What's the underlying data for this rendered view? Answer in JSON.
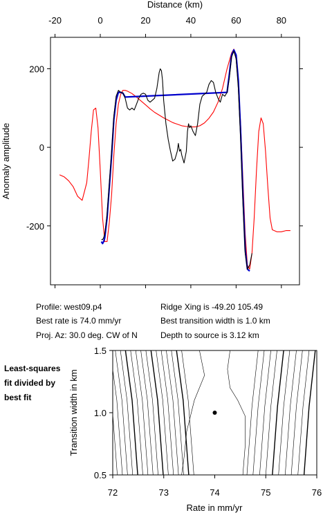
{
  "chart_data": [
    {
      "type": "line",
      "title": "",
      "xlabel": "Distance (km)",
      "ylabel": "Anomaly amplitude",
      "xlim": [
        -22,
        88
      ],
      "ylim": [
        -350,
        280
      ],
      "xticks": [
        -20,
        0,
        20,
        40,
        60,
        80
      ],
      "yticks": [
        -200,
        0,
        200
      ],
      "xtick_labels": [
        "-20",
        "0",
        "20",
        "40",
        "60",
        "80"
      ],
      "ytick_labels": [
        "-200",
        "0",
        "200"
      ],
      "xaxis_position": "top",
      "grid": false,
      "series": [
        {
          "color": "#ff0000",
          "style": "model",
          "x": [
            -18,
            -16,
            -14,
            -12,
            -10,
            -8,
            -6,
            -5,
            -4,
            -3,
            -2,
            -1,
            0,
            1,
            2,
            3,
            4,
            5,
            6,
            7,
            8,
            9,
            10,
            11,
            12,
            14,
            16,
            18,
            20,
            22,
            24,
            26,
            28,
            30,
            32,
            34,
            36,
            38,
            40,
            42,
            44,
            46,
            48,
            50,
            52,
            54,
            56,
            58,
            59,
            60,
            61,
            62,
            63,
            64,
            65,
            66,
            67,
            68,
            69,
            70,
            71,
            72,
            73,
            74,
            75,
            76,
            78,
            80,
            82,
            84
          ],
          "y": [
            -70,
            -75,
            -85,
            -100,
            -125,
            -135,
            -90,
            -30,
            40,
            95,
            100,
            50,
            -60,
            -180,
            -240,
            -240,
            -190,
            -120,
            -20,
            60,
            110,
            135,
            145,
            145,
            143,
            137,
            128,
            118,
            108,
            98,
            89,
            82,
            75,
            69,
            63,
            59,
            55,
            53,
            52,
            52,
            55,
            62,
            74,
            90,
            115,
            150,
            200,
            240,
            250,
            225,
            160,
            60,
            -80,
            -220,
            -300,
            -310,
            -270,
            -180,
            -60,
            40,
            75,
            60,
            -10,
            -100,
            -180,
            -210,
            -215,
            -215,
            -212,
            -212
          ]
        },
        {
          "color": "#0000cc",
          "style": "observed-fit",
          "x": [
            0.5,
            1,
            1.5,
            2,
            3,
            4,
            5,
            6,
            7,
            8,
            9,
            10,
            11,
            56,
            57,
            58,
            59,
            60,
            61,
            62,
            63,
            64,
            65,
            66
          ],
          "y": [
            -240,
            -245,
            -240,
            -230,
            -180,
            -100,
            -20,
            70,
            120,
            140,
            140,
            138,
            128,
            140,
            185,
            235,
            248,
            235,
            170,
            40,
            -120,
            -260,
            -310,
            -315
          ]
        },
        {
          "color": "#000000",
          "style": "observed-data",
          "x": [
            0.5,
            1,
            1.5,
            2,
            3,
            4,
            5,
            6,
            7,
            8,
            9,
            10,
            11,
            12,
            13,
            14,
            15,
            16,
            17,
            18,
            19,
            20,
            21,
            22,
            23,
            24,
            25,
            26,
            26.5,
            27,
            27.5,
            28,
            29,
            30,
            31,
            32,
            33,
            34,
            34.5,
            35,
            35.5,
            36,
            37,
            38,
            38.5,
            39,
            39.5,
            40,
            41,
            42,
            43,
            44,
            45,
            46,
            47,
            48,
            49,
            50,
            51,
            52,
            53,
            54,
            55,
            56,
            57,
            58,
            59,
            60,
            61,
            62,
            63,
            64,
            65,
            66,
            67
          ],
          "y": [
            -235,
            -235,
            -230,
            -220,
            -170,
            -90,
            -10,
            80,
            130,
            145,
            140,
            138,
            125,
            100,
            95,
            100,
            95,
            110,
            125,
            135,
            138,
            135,
            120,
            115,
            120,
            125,
            150,
            190,
            200,
            195,
            170,
            120,
            60,
            20,
            -10,
            -35,
            -30,
            -10,
            10,
            -10,
            -5,
            -20,
            -40,
            -10,
            40,
            60,
            50,
            55,
            40,
            30,
            60,
            110,
            130,
            135,
            140,
            160,
            170,
            165,
            140,
            125,
            115,
            135,
            130,
            140,
            175,
            230,
            245,
            225,
            150,
            20,
            -140,
            -270,
            -310,
            -300,
            -270
          ]
        }
      ]
    },
    {
      "type": "contour",
      "title": "",
      "xlabel": "Rate in mm/yr",
      "ylabel": "Transition width in km",
      "xlim": [
        72,
        76
      ],
      "ylim": [
        0.5,
        1.5
      ],
      "xticks": [
        72,
        73,
        74,
        75,
        76
      ],
      "yticks": [
        0.5,
        1.0,
        1.5
      ],
      "xtick_labels": [
        "72",
        "73",
        "74",
        "75",
        "76"
      ],
      "ytick_labels": [
        "0.5",
        "1.0",
        "1.5"
      ],
      "grid": false,
      "best_fit_point": {
        "x": 74.0,
        "y": 1.0
      },
      "left_contour_x_at_top": [
        71.85,
        71.95,
        72.05,
        72.15,
        72.25,
        72.35,
        72.45,
        72.55,
        72.65,
        72.75,
        72.85,
        72.95,
        73.05,
        73.15,
        73.25,
        73.35
      ],
      "right_contour_x_at_top": [
        74.85,
        74.97,
        75.1,
        75.22,
        75.35,
        75.47,
        75.6,
        75.72,
        75.85,
        75.97
      ]
    }
  ],
  "info": {
    "profile": "Profile: west09.p4",
    "best_rate": "Best rate is 74.0 mm/yr",
    "proj_az": "Proj. Az: 30.0 deg. CW of N",
    "ridge_xing": "Ridge Xing is -49.20 105.49",
    "best_transition": "Best transition width is 1.0 km",
    "depth": "Depth to source is   3.12 km"
  },
  "note": [
    "Least-squares",
    "fit divided by",
    "best fit"
  ]
}
